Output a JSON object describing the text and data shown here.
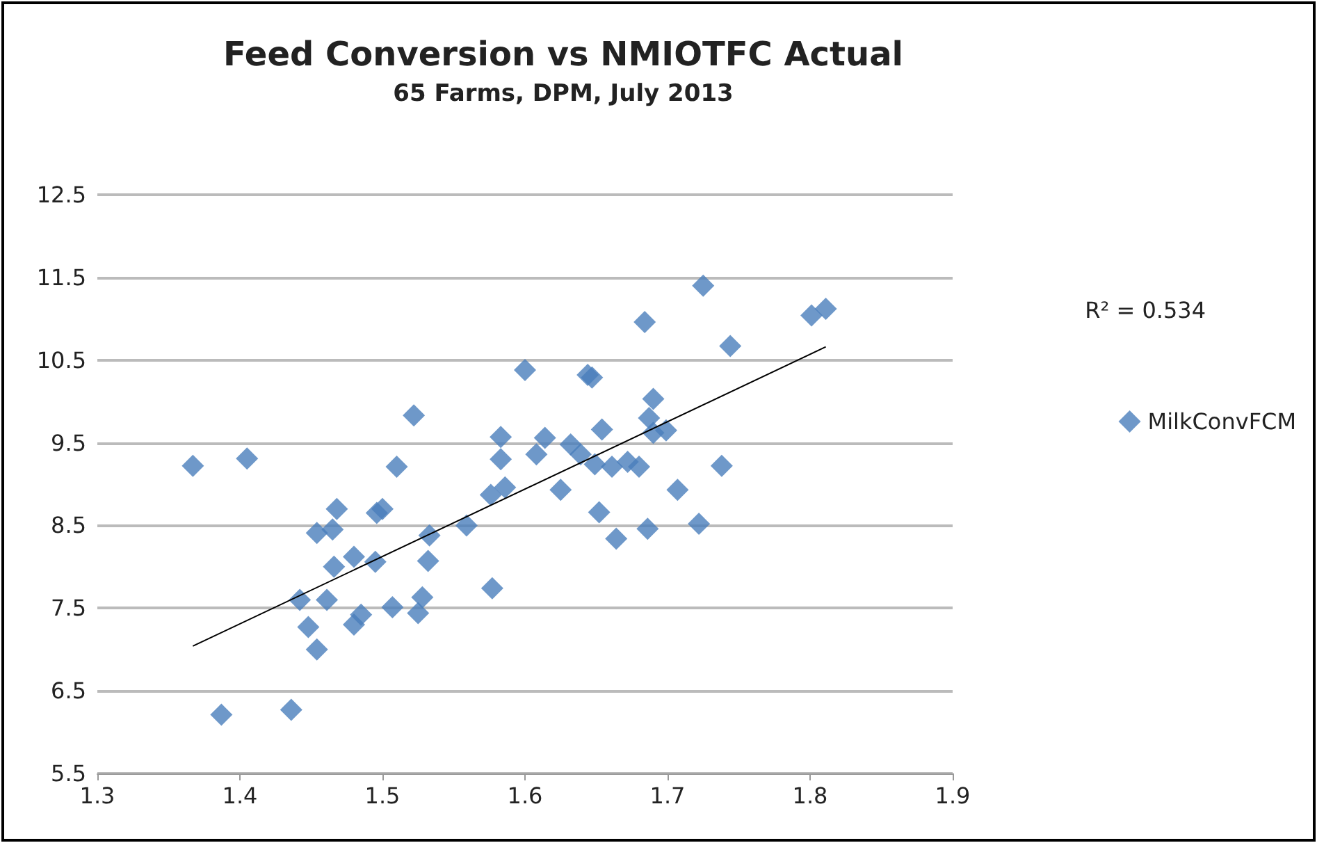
{
  "chart_data": {
    "type": "scatter",
    "title": "Feed Conversion vs NMIOTFC Actual",
    "subtitle": "65 Farms, DPM, July 2013",
    "marker": "diamond",
    "grid": "y",
    "legend": "right",
    "annotations": [
      "R² = 0.534"
    ],
    "xlim": [
      1.3,
      1.9
    ],
    "xticks": [
      1.3,
      1.4,
      1.5,
      1.6,
      1.7,
      1.8,
      1.9
    ],
    "ylim": [
      5.5,
      12.5
    ],
    "yticks": [
      5.5,
      6.5,
      7.5,
      8.5,
      9.5,
      10.5,
      11.5,
      12.5
    ],
    "series": [
      {
        "name": "MilkConvFCM",
        "color": "#4a7ebb",
        "x": [
          1.367,
          1.405,
          1.6,
          1.522,
          1.51,
          1.468,
          1.454,
          1.465,
          1.5,
          1.496,
          1.583,
          1.583,
          1.608,
          1.576,
          1.586,
          1.559,
          1.533,
          1.532,
          1.466,
          1.48,
          1.495,
          1.442,
          1.461,
          1.448,
          1.454,
          1.48,
          1.485,
          1.507,
          1.528,
          1.525,
          1.577,
          1.387,
          1.436,
          1.614,
          1.625,
          1.725,
          1.684,
          1.647,
          1.644,
          1.744,
          1.801,
          1.811,
          1.69,
          1.654,
          1.632,
          1.639,
          1.649,
          1.661,
          1.672,
          1.68,
          1.687,
          1.699,
          1.69,
          1.738,
          1.707,
          1.652,
          1.664,
          1.686,
          1.722
        ],
        "values": [
          9.22,
          9.31,
          10.38,
          9.83,
          9.21,
          8.7,
          8.41,
          8.45,
          8.7,
          8.65,
          9.57,
          9.3,
          9.36,
          8.87,
          8.96,
          8.5,
          8.38,
          8.07,
          8.0,
          8.12,
          8.06,
          7.6,
          7.6,
          7.27,
          7.0,
          7.3,
          7.42,
          7.51,
          7.63,
          7.44,
          7.74,
          6.21,
          6.27,
          9.56,
          8.93,
          11.4,
          10.96,
          10.29,
          10.32,
          10.67,
          11.04,
          11.12,
          10.03,
          9.66,
          9.48,
          9.36,
          9.24,
          9.21,
          9.27,
          9.21,
          9.8,
          9.65,
          9.62,
          9.22,
          8.93,
          8.66,
          8.34,
          8.46,
          8.52
        ]
      },
      {
        "type": "line",
        "color": "#000000",
        "marker": "none",
        "x": [
          1.367,
          1.811
        ],
        "values": [
          7.04,
          10.66
        ]
      }
    ]
  }
}
